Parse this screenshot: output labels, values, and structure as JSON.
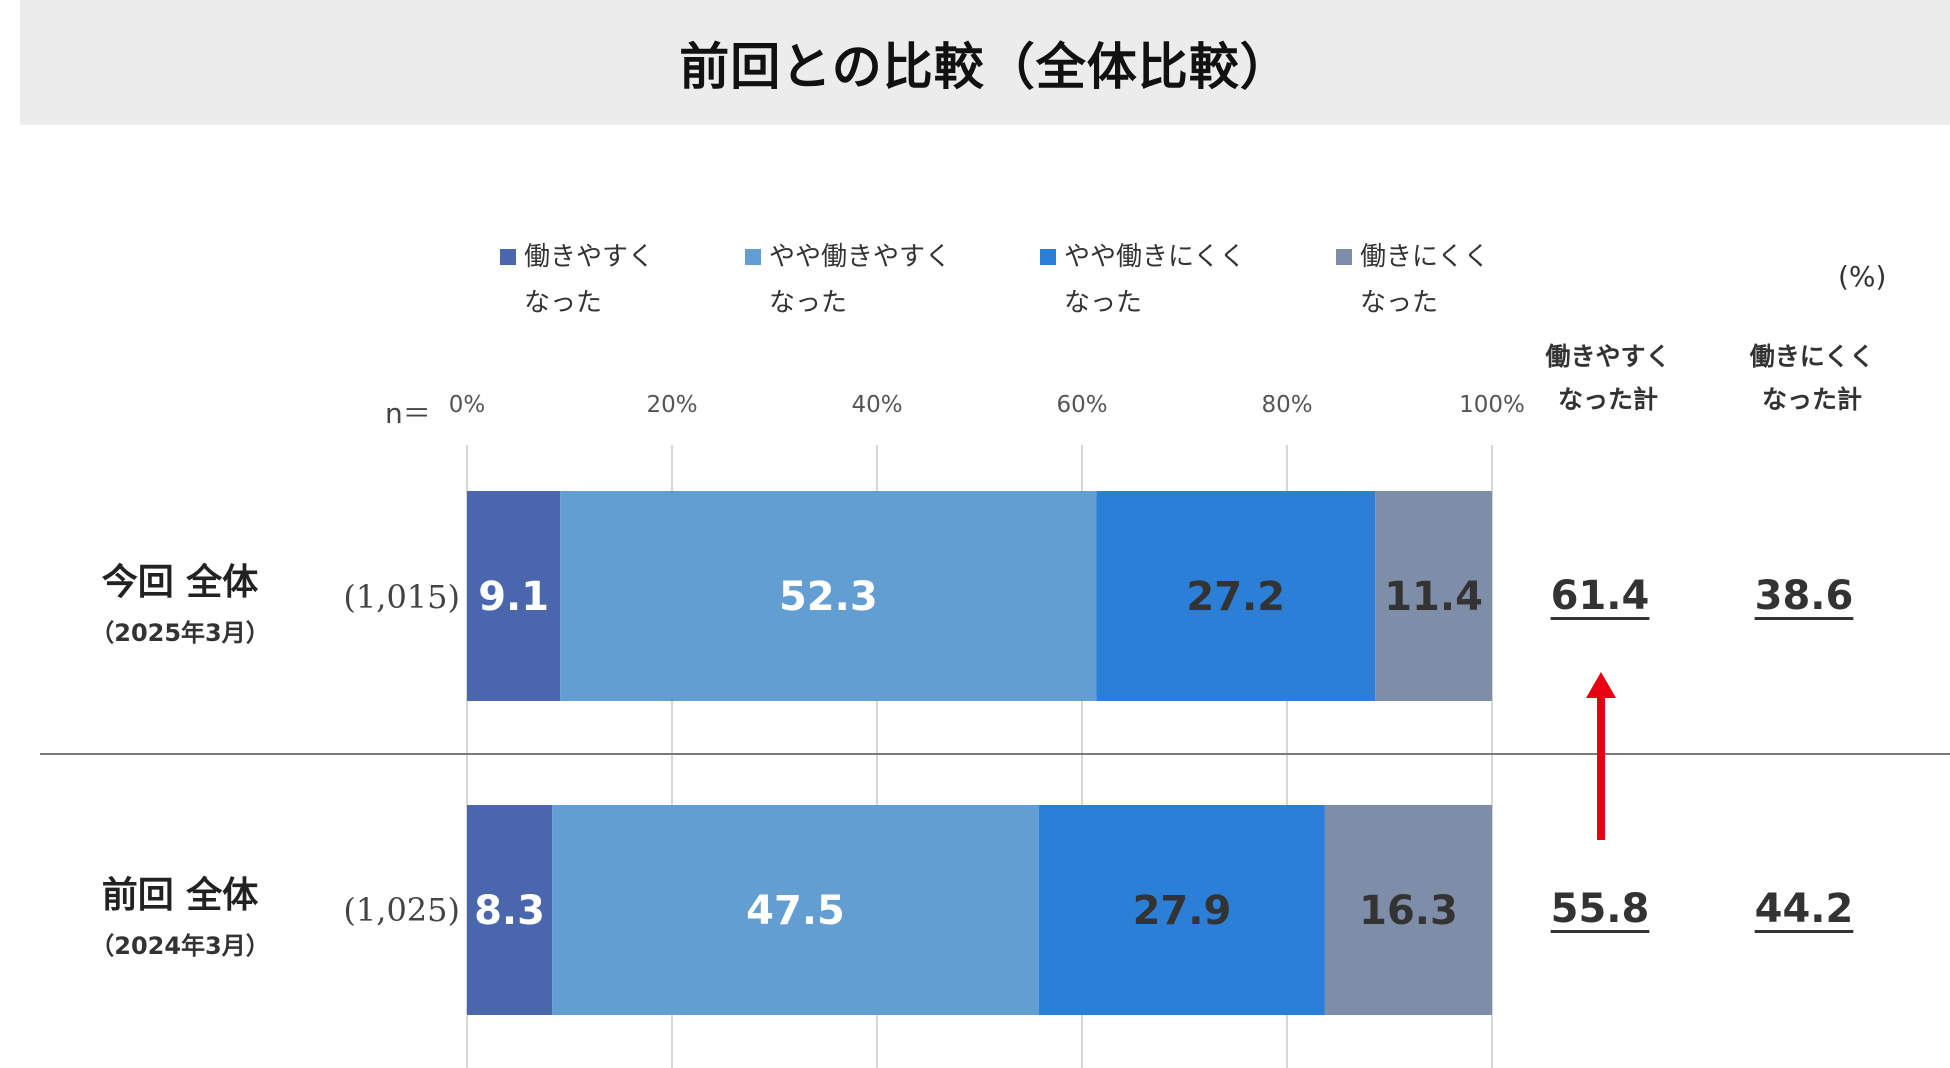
{
  "title": "前回との比較（全体比較）",
  "unit": "(%)",
  "n_label": "n＝",
  "summary_headers": [
    "働きやすく\nなった計",
    "働きにくく\nなった計"
  ],
  "colors": [
    "#4a66ad",
    "#629ed2",
    "#2b7fd6",
    "#7f8ea8"
  ],
  "label_colors": [
    "#ffffff",
    "#ffffff",
    "#333333",
    "#333333"
  ],
  "chart_data": {
    "type": "bar",
    "orientation": "horizontal",
    "stacked": true,
    "x_ticks": [
      "0%",
      "20%",
      "40%",
      "60%",
      "80%",
      "100%"
    ],
    "xlim": [
      0,
      100
    ],
    "legend": [
      "働きやすく\nなった",
      "やや働きやすく\nなった",
      "やや働きにくく\nなった",
      "働きにくく\nなった"
    ],
    "legend_position": "top",
    "categories": [
      {
        "label": "今回 全体",
        "sub": "（2025年3月）",
        "n": "(1,015)",
        "values": [
          9.1,
          52.3,
          27.2,
          11.4
        ],
        "totals": [
          "61.4",
          "38.6"
        ]
      },
      {
        "label": "前回 全体",
        "sub": "（2024年3月）",
        "n": "(1,025)",
        "values": [
          8.3,
          47.5,
          27.9,
          16.3
        ],
        "totals": [
          "55.8",
          "44.2"
        ]
      }
    ]
  }
}
